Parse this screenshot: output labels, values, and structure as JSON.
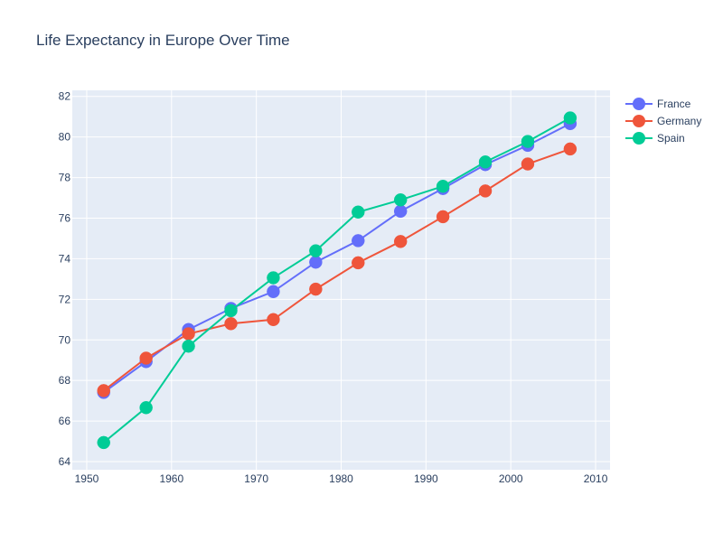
{
  "chart_data": {
    "type": "line",
    "title": "Life Expectancy in Europe Over Time",
    "xlabel": "",
    "ylabel": "",
    "xlim": [
      1948.3,
      2011.7
    ],
    "ylim": [
      63.6,
      82.3
    ],
    "x_ticks": [
      1950,
      1960,
      1970,
      1980,
      1990,
      2000,
      2010
    ],
    "y_ticks": [
      64,
      66,
      68,
      70,
      72,
      74,
      76,
      78,
      80,
      82
    ],
    "grid": true,
    "legend": "top-right",
    "x": [
      1952,
      1957,
      1962,
      1967,
      1972,
      1977,
      1982,
      1987,
      1992,
      1997,
      2002,
      2007
    ],
    "series": [
      {
        "name": "France",
        "color": "#636efa",
        "values": [
          67.41,
          68.93,
          70.51,
          71.55,
          72.38,
          73.83,
          74.89,
          76.34,
          77.46,
          78.64,
          79.59,
          80.66
        ]
      },
      {
        "name": "Germany",
        "color": "#ef553b",
        "values": [
          67.5,
          69.1,
          70.3,
          70.8,
          71.0,
          72.5,
          73.8,
          74.85,
          76.07,
          77.34,
          78.67,
          79.41
        ]
      },
      {
        "name": "Spain",
        "color": "#00cc96",
        "values": [
          64.94,
          66.66,
          69.69,
          71.44,
          73.06,
          74.39,
          76.3,
          76.9,
          77.57,
          78.77,
          79.78,
          80.94
        ]
      }
    ]
  }
}
